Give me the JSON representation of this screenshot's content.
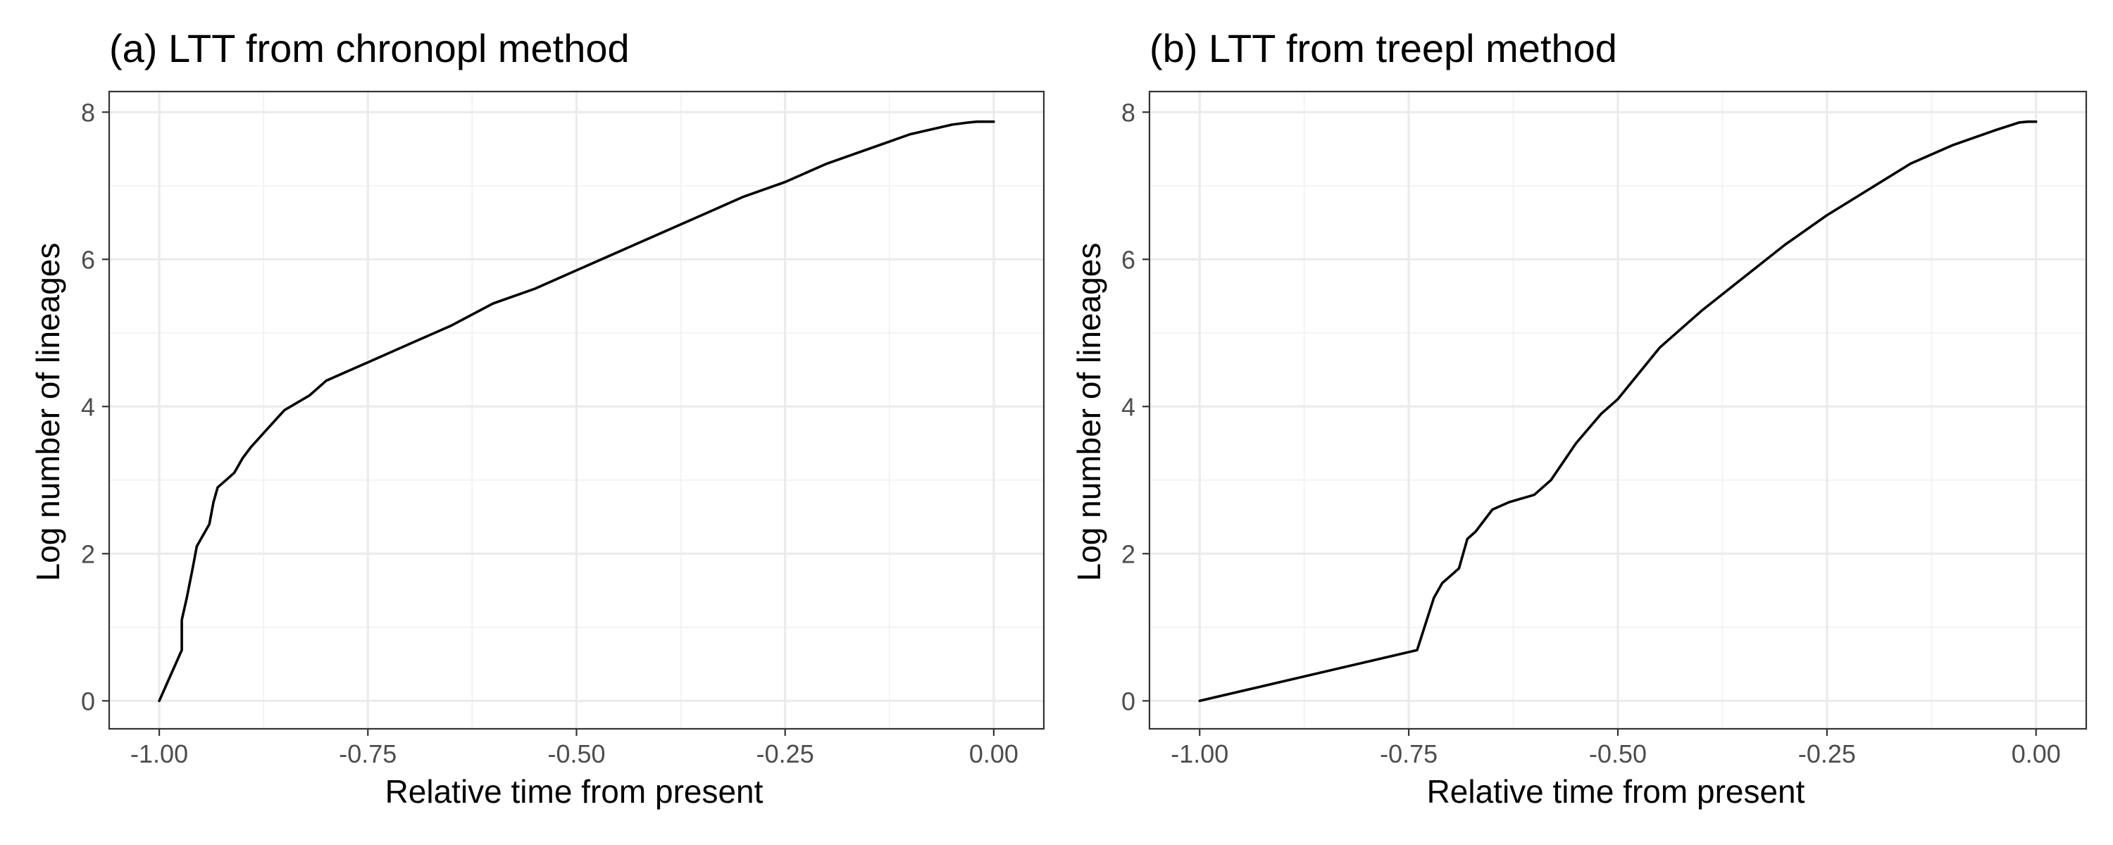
{
  "figure": {
    "background": "#ffffff",
    "line_color": "#000000"
  },
  "chart_data": [
    {
      "type": "line",
      "title": "(a) LTT from chronopl method",
      "xlabel": "Relative time from present",
      "ylabel": "Log number of lineages",
      "xlim": [
        -1.06,
        0.06
      ],
      "ylim": [
        -0.38,
        8.28
      ],
      "xticks": [
        -1.0,
        -0.75,
        -0.5,
        -0.25,
        0.0
      ],
      "xtick_labels": [
        "-1.00",
        "-0.75",
        "-0.50",
        "-0.25",
        "0.00"
      ],
      "yticks": [
        0,
        2,
        4,
        6,
        8
      ],
      "ytick_labels": [
        "0",
        "2",
        "4",
        "6",
        "8"
      ],
      "grid": true,
      "series": [
        {
          "x": [
            -1.0,
            -0.973,
            -0.973,
            -0.967,
            -0.96,
            -0.955,
            -0.95,
            -0.94,
            -0.935,
            -0.93,
            -0.92,
            -0.91,
            -0.9,
            -0.89,
            -0.87,
            -0.85,
            -0.82,
            -0.8,
            -0.78,
            -0.75,
            -0.72,
            -0.7,
            -0.65,
            -0.6,
            -0.55,
            -0.5,
            -0.45,
            -0.4,
            -0.35,
            -0.3,
            -0.25,
            -0.2,
            -0.15,
            -0.1,
            -0.05,
            -0.03,
            -0.02,
            0.0
          ],
          "y": [
            0.0,
            0.69,
            1.1,
            1.4,
            1.8,
            2.1,
            2.2,
            2.4,
            2.7,
            2.9,
            3.0,
            3.1,
            3.3,
            3.45,
            3.7,
            3.95,
            4.15,
            4.35,
            4.45,
            4.6,
            4.75,
            4.85,
            5.1,
            5.4,
            5.6,
            5.85,
            6.1,
            6.35,
            6.6,
            6.85,
            7.05,
            7.3,
            7.5,
            7.7,
            7.83,
            7.86,
            7.87,
            7.87
          ]
        }
      ]
    },
    {
      "type": "line",
      "title": "(b) LTT from treepl method",
      "xlabel": "Relative time from present",
      "ylabel": "Log number of lineages",
      "xlim": [
        -1.06,
        0.06
      ],
      "ylim": [
        -0.38,
        8.28
      ],
      "xticks": [
        -1.0,
        -0.75,
        -0.5,
        -0.25,
        0.0
      ],
      "xtick_labels": [
        "-1.00",
        "-0.75",
        "-0.50",
        "-0.25",
        "0.00"
      ],
      "yticks": [
        0,
        2,
        4,
        6,
        8
      ],
      "ytick_labels": [
        "0",
        "2",
        "4",
        "6",
        "8"
      ],
      "grid": true,
      "series": [
        {
          "x": [
            -1.0,
            -0.74,
            -0.72,
            -0.71,
            -0.69,
            -0.68,
            -0.67,
            -0.65,
            -0.63,
            -0.6,
            -0.58,
            -0.55,
            -0.52,
            -0.5,
            -0.45,
            -0.4,
            -0.35,
            -0.3,
            -0.25,
            -0.2,
            -0.15,
            -0.1,
            -0.05,
            -0.02,
            -0.01,
            0.0
          ],
          "y": [
            0.0,
            0.69,
            1.4,
            1.6,
            1.8,
            2.2,
            2.3,
            2.6,
            2.7,
            2.8,
            3.0,
            3.5,
            3.9,
            4.1,
            4.8,
            5.3,
            5.75,
            6.2,
            6.6,
            6.95,
            7.3,
            7.55,
            7.75,
            7.86,
            7.87,
            7.87
          ]
        }
      ]
    }
  ]
}
